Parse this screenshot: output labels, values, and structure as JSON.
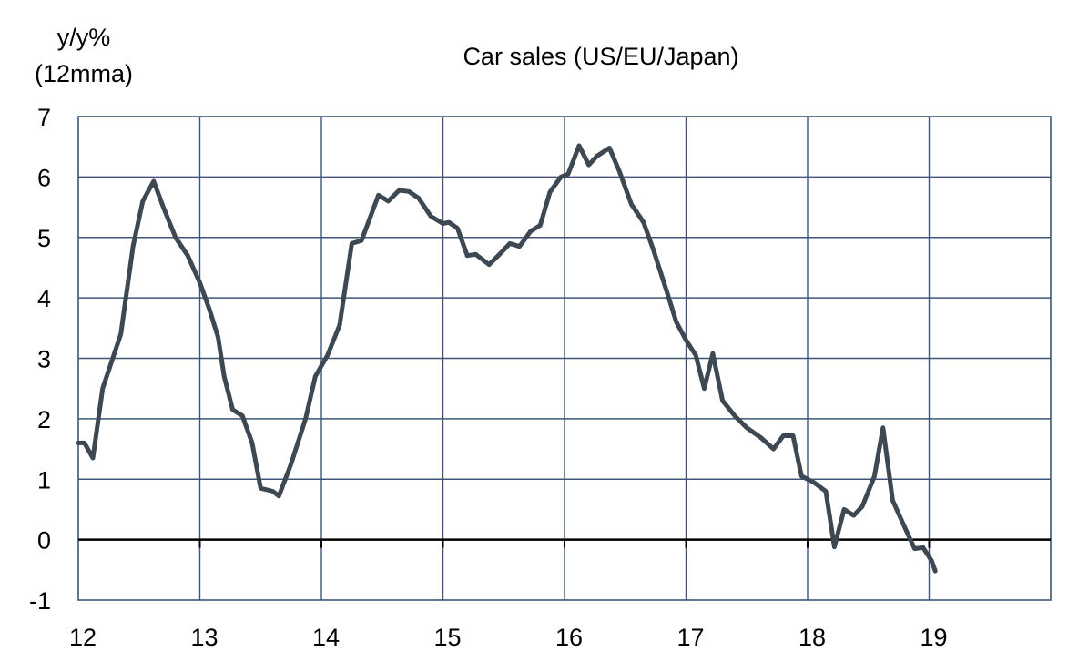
{
  "chart_data": {
    "type": "line",
    "title": "Car sales (US/EU/Japan)",
    "ylabel": [
      "y/y%",
      "(12mma)"
    ],
    "xlabel": "",
    "xlim": [
      12,
      20
    ],
    "ylim": [
      -1,
      7
    ],
    "x_ticks": [
      "12",
      "13",
      "14",
      "15",
      "16",
      "17",
      "18",
      "19"
    ],
    "y_ticks": [
      "-1",
      "0",
      "1",
      "2",
      "3",
      "4",
      "5",
      "6",
      "7"
    ],
    "grid": true,
    "zero_line": true,
    "colors": {
      "line": "#3d4852",
      "grid": "#3f5676",
      "axis": "#000000"
    },
    "series": [
      {
        "points": [
          [
            12.0,
            1.6
          ],
          [
            12.05,
            1.6
          ],
          [
            12.12,
            1.35
          ],
          [
            12.2,
            2.5
          ],
          [
            12.35,
            3.4
          ],
          [
            12.45,
            4.85
          ],
          [
            12.53,
            5.6
          ],
          [
            12.62,
            5.93
          ],
          [
            12.7,
            5.5
          ],
          [
            12.8,
            5.0
          ],
          [
            12.9,
            4.7
          ],
          [
            13.0,
            4.25
          ],
          [
            13.08,
            3.8
          ],
          [
            13.15,
            3.35
          ],
          [
            13.2,
            2.7
          ],
          [
            13.27,
            2.15
          ],
          [
            13.35,
            2.05
          ],
          [
            13.43,
            1.6
          ],
          [
            13.5,
            0.85
          ],
          [
            13.6,
            0.8
          ],
          [
            13.65,
            0.72
          ],
          [
            13.75,
            1.25
          ],
          [
            13.87,
            2.0
          ],
          [
            13.95,
            2.7
          ],
          [
            14.05,
            3.05
          ],
          [
            14.15,
            3.55
          ],
          [
            14.25,
            4.9
          ],
          [
            14.33,
            4.95
          ],
          [
            14.47,
            5.7
          ],
          [
            14.55,
            5.6
          ],
          [
            14.64,
            5.78
          ],
          [
            14.72,
            5.76
          ],
          [
            14.8,
            5.65
          ],
          [
            14.9,
            5.35
          ],
          [
            15.0,
            5.23
          ],
          [
            15.05,
            5.25
          ],
          [
            15.12,
            5.15
          ],
          [
            15.2,
            4.7
          ],
          [
            15.27,
            4.72
          ],
          [
            15.38,
            4.55
          ],
          [
            15.48,
            4.75
          ],
          [
            15.55,
            4.9
          ],
          [
            15.63,
            4.85
          ],
          [
            15.72,
            5.1
          ],
          [
            15.8,
            5.2
          ],
          [
            15.88,
            5.75
          ],
          [
            15.97,
            6.0
          ],
          [
            16.03,
            6.05
          ],
          [
            16.12,
            6.52
          ],
          [
            16.2,
            6.2
          ],
          [
            16.27,
            6.35
          ],
          [
            16.37,
            6.48
          ],
          [
            16.45,
            6.1
          ],
          [
            16.55,
            5.55
          ],
          [
            16.65,
            5.25
          ],
          [
            16.73,
            4.8
          ],
          [
            16.85,
            4.05
          ],
          [
            16.92,
            3.6
          ],
          [
            17.0,
            3.3
          ],
          [
            17.08,
            3.05
          ],
          [
            17.15,
            2.5
          ],
          [
            17.22,
            3.08
          ],
          [
            17.3,
            2.3
          ],
          [
            17.4,
            2.05
          ],
          [
            17.5,
            1.85
          ],
          [
            17.62,
            1.68
          ],
          [
            17.72,
            1.5
          ],
          [
            17.8,
            1.72
          ],
          [
            17.88,
            1.72
          ],
          [
            17.95,
            1.05
          ],
          [
            18.05,
            0.95
          ],
          [
            18.15,
            0.8
          ],
          [
            18.22,
            -0.12
          ],
          [
            18.3,
            0.5
          ],
          [
            18.38,
            0.4
          ],
          [
            18.45,
            0.55
          ],
          [
            18.55,
            1.05
          ],
          [
            18.62,
            1.85
          ],
          [
            18.7,
            0.65
          ],
          [
            18.8,
            0.2
          ],
          [
            18.88,
            -0.15
          ],
          [
            18.95,
            -0.13
          ],
          [
            19.02,
            -0.35
          ],
          [
            19.05,
            -0.52
          ]
        ]
      }
    ]
  }
}
